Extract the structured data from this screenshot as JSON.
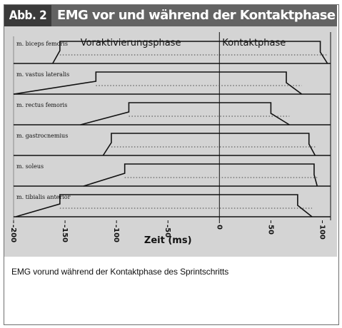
{
  "figure": {
    "label": "Abb. 2",
    "title": "EMG vor und während der Kontaktphase",
    "caption": "EMG vorund während der Kontaktphase des Sprintschritts"
  },
  "colors": {
    "header_bg": "#636363",
    "header_tag_bg": "#3a3a3a",
    "plot_bg": "#d4d4d4",
    "line": "#111111"
  },
  "chart_data": {
    "type": "line",
    "title": "",
    "xlabel": "Zeit (ms)",
    "ylabel": "",
    "xlim": [
      -200,
      108
    ],
    "xticks": [
      -200,
      -150,
      -100,
      -50,
      0,
      50,
      100
    ],
    "phases": [
      "Voraktivierungsphase",
      "Kontaktphase"
    ],
    "grid": false,
    "series": [
      {
        "name": "m. biceps femoris",
        "ramp_start": -162,
        "active_start": -155,
        "active_end": 98,
        "ramp_end": 105
      },
      {
        "name": "m. vastus lateralis",
        "ramp_start": -200,
        "active_start": -120,
        "active_end": 65,
        "ramp_end": 80
      },
      {
        "name": "m. rectus femoris",
        "ramp_start": -135,
        "active_start": -88,
        "active_end": 50,
        "ramp_end": 68
      },
      {
        "name": "m. gastrocnemius",
        "ramp_start": -113,
        "active_start": -105,
        "active_end": 87,
        "ramp_end": 93
      },
      {
        "name": "m. soleus",
        "ramp_start": -132,
        "active_start": -92,
        "active_end": 92,
        "ramp_end": 95
      },
      {
        "name": "m. tibialis anterior",
        "ramp_start": -198,
        "active_start": -155,
        "active_end": 76,
        "ramp_end": 90
      }
    ]
  }
}
